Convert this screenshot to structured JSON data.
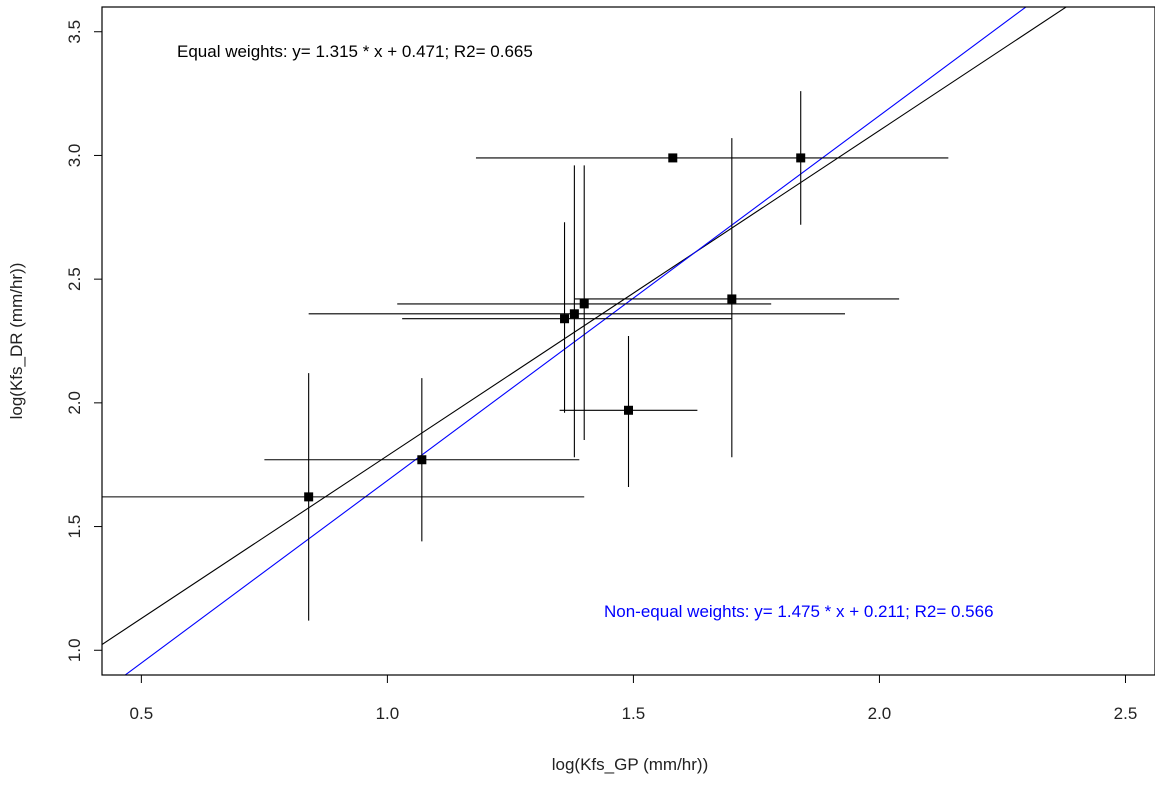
{
  "chart_data": {
    "type": "scatter",
    "title": "",
    "xlabel": "log(Kfs_GP (mm/hr))",
    "ylabel": "log(Kfs_DR (mm/hr))",
    "xlim": [
      0.42,
      2.56
    ],
    "ylim": [
      0.9,
      3.6
    ],
    "x_ticks": [
      0.5,
      1.0,
      1.5,
      2.0,
      2.5
    ],
    "x_tick_labels": [
      "0.5",
      "1.0",
      "1.5",
      "2.0",
      "2.5"
    ],
    "y_ticks": [
      1.0,
      1.5,
      2.0,
      2.5,
      3.0,
      3.5
    ],
    "y_tick_labels": [
      "1.0",
      "1.5",
      "2.0",
      "2.5",
      "3.0",
      "3.5"
    ],
    "grid": false,
    "points": [
      {
        "x": 0.84,
        "y": 1.62,
        "xerr": [
          0.42,
          1.4
        ],
        "yerr": [
          1.12,
          2.12
        ]
      },
      {
        "x": 1.07,
        "y": 1.77,
        "xerr": [
          0.75,
          1.39
        ],
        "yerr": [
          1.44,
          2.1
        ]
      },
      {
        "x": 1.36,
        "y": 2.34,
        "xerr": [
          1.03,
          1.7
        ],
        "yerr": [
          1.96,
          2.73
        ]
      },
      {
        "x": 1.38,
        "y": 2.36,
        "xerr": [
          0.84,
          1.93
        ],
        "yerr": [
          1.78,
          2.96
        ]
      },
      {
        "x": 1.4,
        "y": 2.4,
        "xerr": [
          1.02,
          1.78
        ],
        "yerr": [
          1.85,
          2.96
        ]
      },
      {
        "x": 1.49,
        "y": 1.97,
        "xerr": [
          1.35,
          1.63
        ],
        "yerr": [
          1.66,
          2.27
        ]
      },
      {
        "x": 1.58,
        "y": 2.99,
        "xerr": [
          1.18,
          2.14
        ],
        "yerr": null
      },
      {
        "x": 1.7,
        "y": 2.42,
        "xerr": [
          1.38,
          2.04
        ],
        "yerr": [
          1.78,
          3.07
        ]
      },
      {
        "x": 1.84,
        "y": 2.99,
        "xerr": null,
        "yerr": [
          2.72,
          3.26
        ]
      }
    ],
    "lines": [
      {
        "label": "Equal weights",
        "slope": 1.315,
        "intercept": 0.471,
        "color": "#000000"
      },
      {
        "label": "Non-equal weights",
        "slope": 1.475,
        "intercept": 0.211,
        "color": "#0000ff"
      }
    ],
    "annotations": [
      {
        "text": "Equal weights: y= 1.315 * x + 0.471; R2= 0.665",
        "color": "#000000"
      },
      {
        "text": "Non-equal weights: y= 1.475 * x + 0.211; R2= 0.566",
        "color": "#0000ff"
      }
    ]
  }
}
